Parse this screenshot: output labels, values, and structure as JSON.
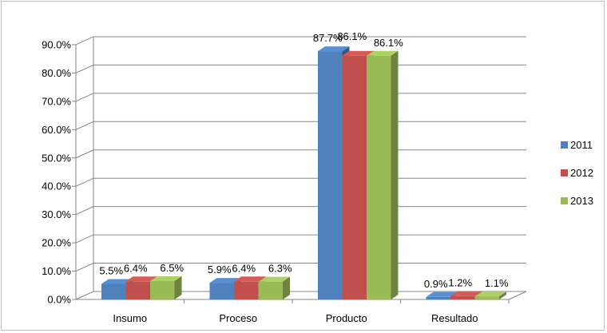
{
  "chart_data": {
    "type": "bar",
    "title": "",
    "xlabel": "",
    "ylabel": "",
    "three_d": true,
    "categories": [
      "Insumo",
      "Proceso",
      "Producto",
      "Resultado"
    ],
    "series": [
      {
        "name": "2011",
        "color": "#4f81bd",
        "values": [
          5.5,
          5.9,
          87.7,
          0.9
        ],
        "labels": [
          "5.5%",
          "5.9%",
          "87.7%",
          "0.9%"
        ]
      },
      {
        "name": "2012",
        "color": "#c0504d",
        "values": [
          6.4,
          6.4,
          86.1,
          1.2
        ],
        "labels": [
          "6.4%",
          "6.4%",
          "86.1%",
          "1.2%"
        ]
      },
      {
        "name": "2013",
        "color": "#9bbb59",
        "values": [
          6.5,
          6.3,
          86.1,
          1.1
        ],
        "labels": [
          "6.5%",
          "6.3%",
          "86.1%",
          "1.1%"
        ]
      }
    ],
    "y_ticks": [
      "0.0%",
      "10.0%",
      "20.0%",
      "30.0%",
      "40.0%",
      "50.0%",
      "60.0%",
      "70.0%",
      "80.0%",
      "90.0%"
    ],
    "ylim": [
      0,
      90
    ],
    "grid": true,
    "legend_position": "right"
  }
}
